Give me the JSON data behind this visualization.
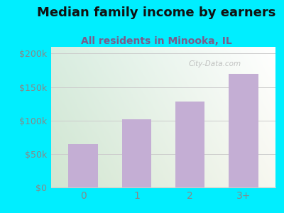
{
  "title": "Median family income by earners",
  "subtitle": "All residents in Minooka, IL",
  "categories": [
    "0",
    "1",
    "2",
    "3+"
  ],
  "values": [
    65000,
    102000,
    128000,
    170000
  ],
  "bar_color": "#c4aed4",
  "title_fontsize": 13,
  "subtitle_fontsize": 10,
  "subtitle_color": "#7a5c8a",
  "title_color": "#111111",
  "yticks": [
    0,
    50000,
    100000,
    150000,
    200000
  ],
  "ytick_labels": [
    "$0",
    "$50k",
    "$100k",
    "$150k",
    "$200k"
  ],
  "ylim": [
    0,
    210000
  ],
  "background_outer": "#00eeff",
  "background_inner_topleft": "#d8edd8",
  "background_inner_topright": "#e8f0f0",
  "background_inner_bottom": "#f0f5e8",
  "grid_color": "#cccccc",
  "tick_color": "#888888",
  "watermark": "City-Data.com"
}
